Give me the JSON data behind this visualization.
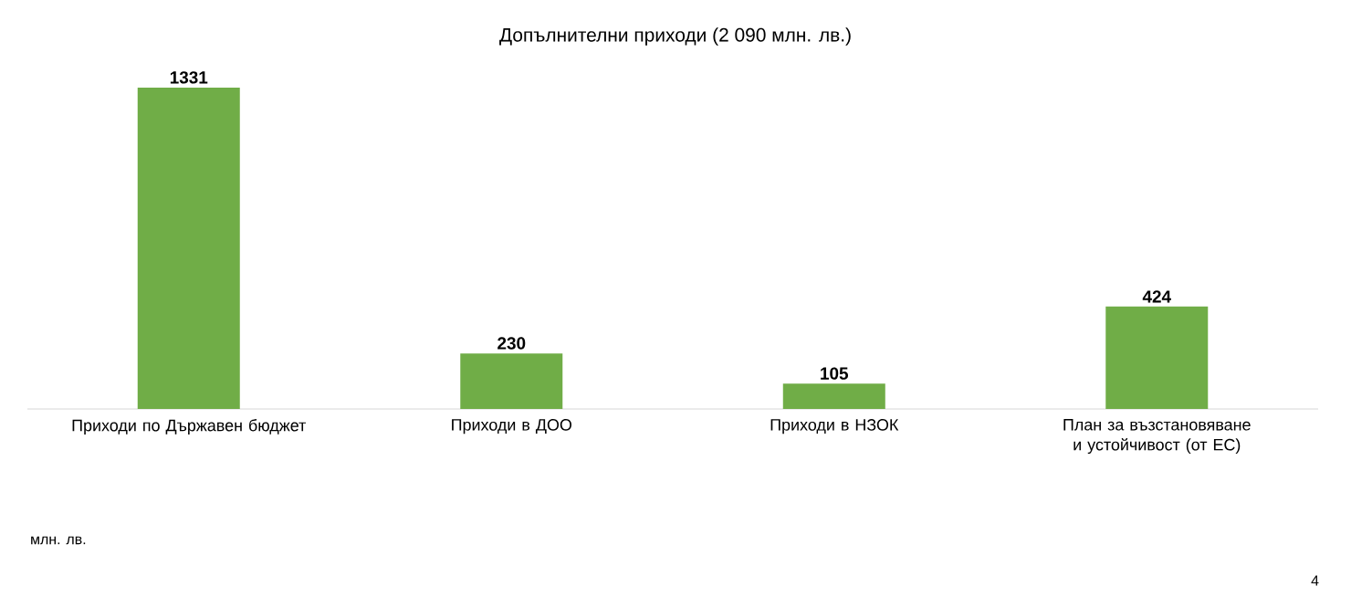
{
  "chart_data": {
    "type": "bar",
    "title": "Допълнителни приходи (2 090 млн. лв.)",
    "categories": [
      "Приходи по Държавен бюджет",
      "Приходи в ДОО",
      "Приходи в НЗОК",
      "План за възстановяване и устойчивост (от ЕС)"
    ],
    "values": [
      1331,
      230,
      105,
      424
    ],
    "color": "#70ad47",
    "data_labels": true,
    "annotations": [
      "млн. лв.",
      "4"
    ]
  }
}
